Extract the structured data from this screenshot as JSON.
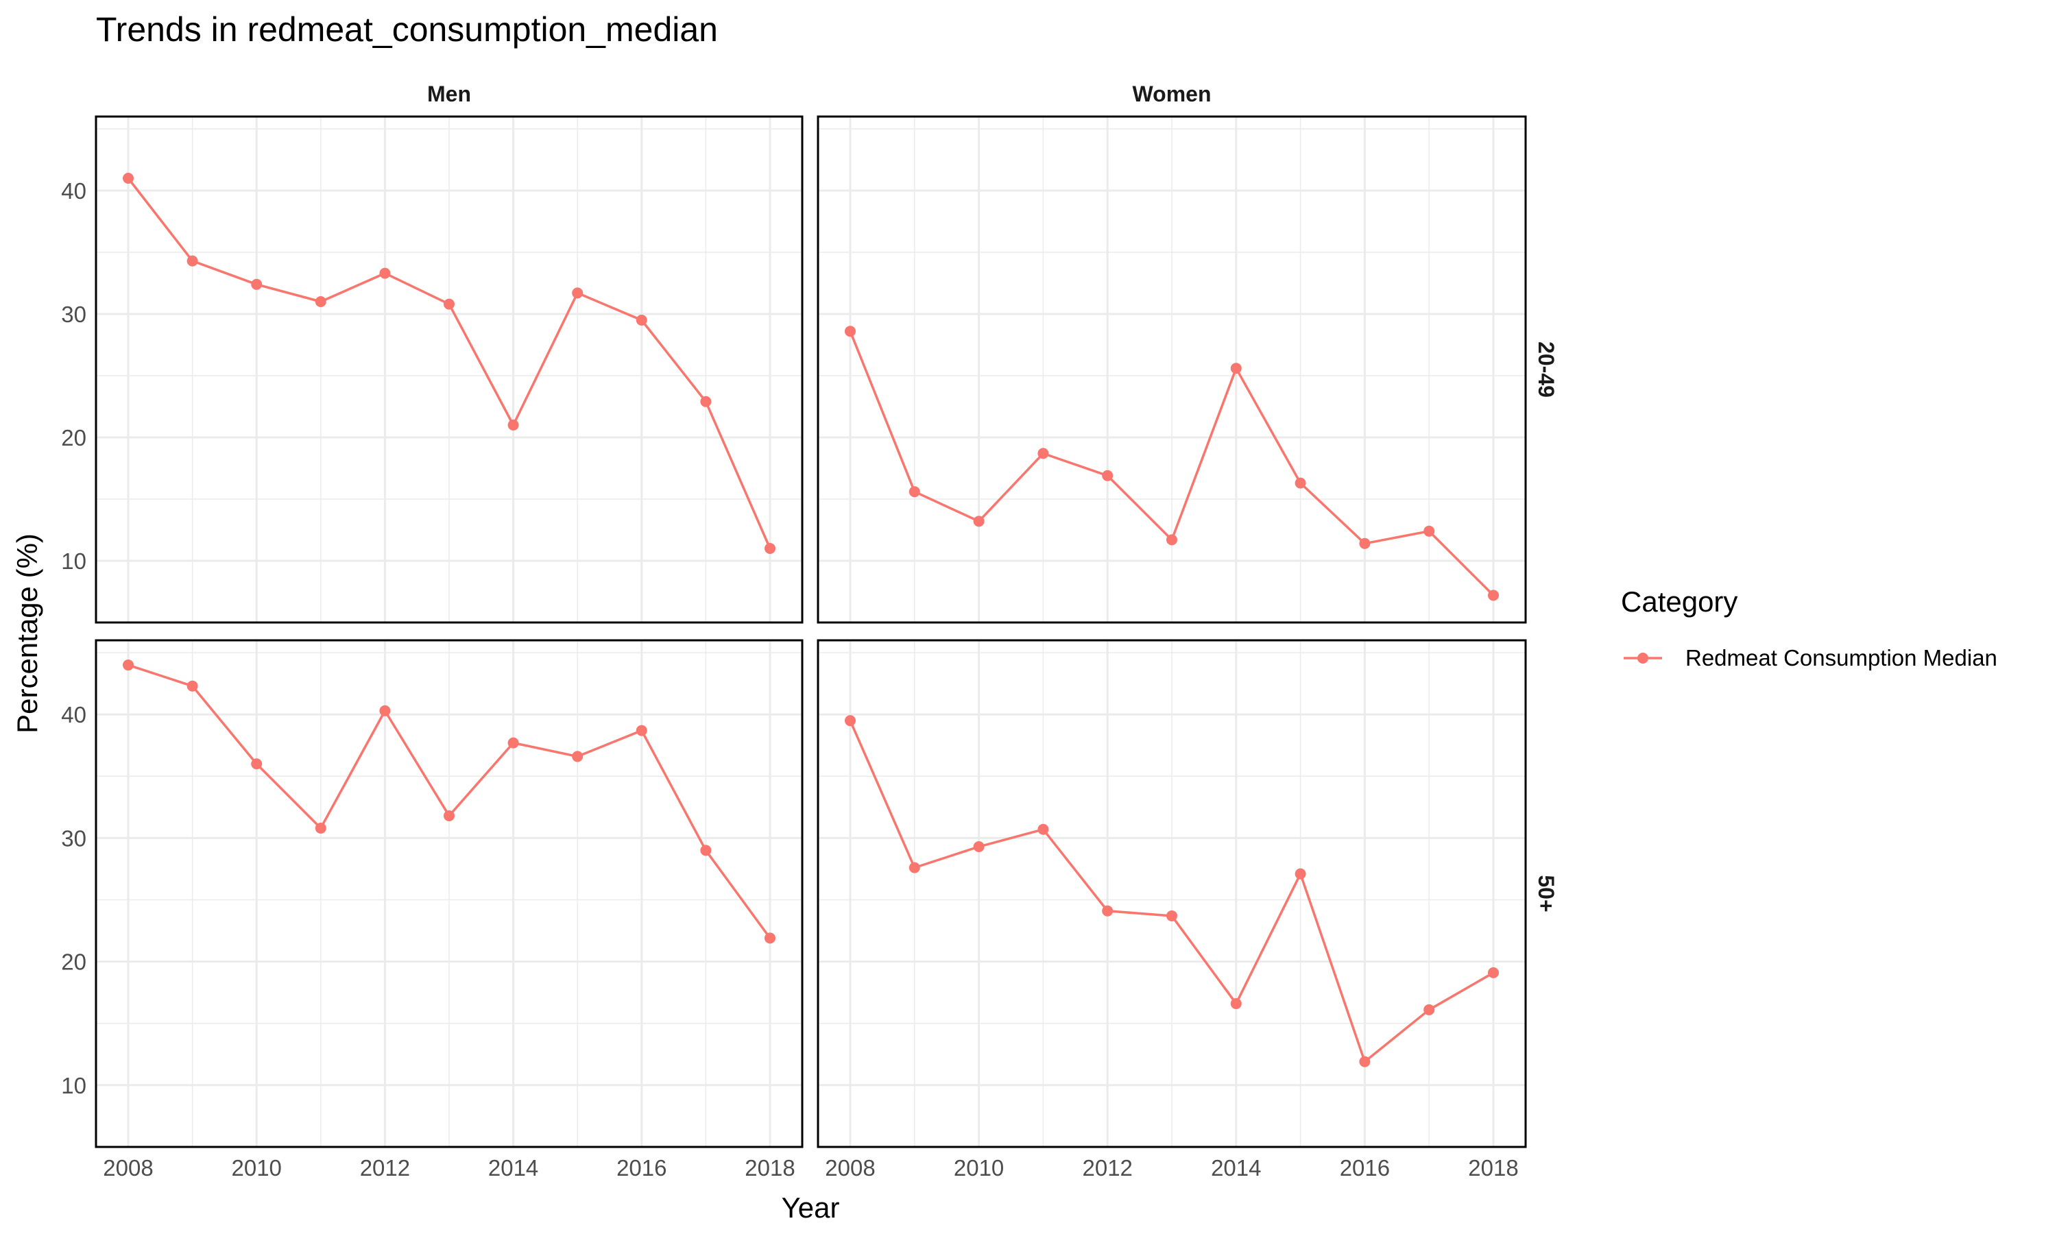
{
  "chart_data": {
    "type": "line",
    "title": "Trends in redmeat_consumption_median",
    "xlabel": "Year",
    "ylabel": "Percentage (%)",
    "x_ticks": [
      2008,
      2010,
      2012,
      2014,
      2016,
      2018
    ],
    "y_ticks": [
      10,
      20,
      30,
      40
    ],
    "xlim": [
      2008,
      2018
    ],
    "ylim": [
      5,
      46
    ],
    "grid": true,
    "legend": {
      "title": "Category",
      "position": "right",
      "entries": [
        {
          "label": "Redmeat Consumption Median",
          "color": "#F8766D"
        }
      ]
    },
    "facets": {
      "columns": [
        "Men",
        "Women"
      ],
      "rows": [
        "20-49",
        "50+"
      ]
    },
    "x": [
      2008,
      2009,
      2010,
      2011,
      2012,
      2013,
      2014,
      2015,
      2016,
      2017,
      2018
    ],
    "panels": [
      {
        "column": "Men",
        "row": "20-49",
        "series": "Redmeat Consumption Median",
        "values": [
          41.0,
          34.3,
          32.4,
          31.0,
          33.3,
          30.8,
          21.0,
          31.7,
          29.5,
          22.9,
          11.0
        ]
      },
      {
        "column": "Women",
        "row": "20-49",
        "series": "Redmeat Consumption Median",
        "values": [
          28.6,
          15.6,
          13.2,
          18.7,
          16.9,
          11.7,
          25.6,
          16.3,
          11.4,
          12.4,
          7.2
        ]
      },
      {
        "column": "Men",
        "row": "50+",
        "series": "Redmeat Consumption Median",
        "values": [
          44.0,
          42.3,
          36.0,
          30.8,
          40.3,
          31.8,
          37.7,
          36.6,
          38.7,
          29.0,
          21.9
        ]
      },
      {
        "column": "Women",
        "row": "50+",
        "series": "Redmeat Consumption Median",
        "values": [
          39.5,
          27.6,
          29.3,
          30.7,
          24.1,
          23.7,
          16.6,
          27.1,
          11.9,
          16.1,
          19.1
        ]
      }
    ]
  },
  "colors": {
    "series": "#F8766D",
    "grid": "#ebebeb",
    "panel_border": "#000000"
  }
}
